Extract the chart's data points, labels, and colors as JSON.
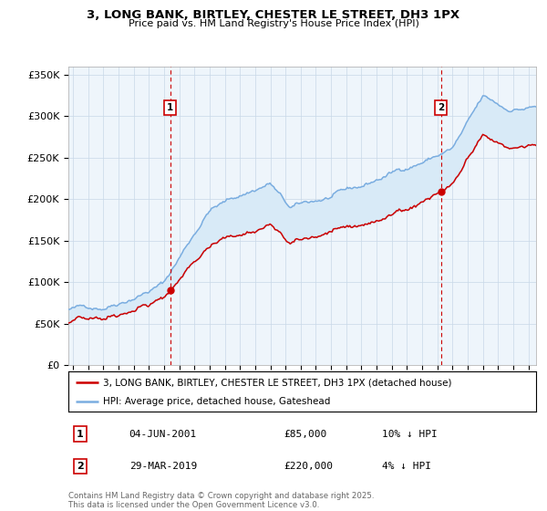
{
  "title": "3, LONG BANK, BIRTLEY, CHESTER LE STREET, DH3 1PX",
  "subtitle": "Price paid vs. HM Land Registry's House Price Index (HPI)",
  "ylabel_ticks": [
    "£0",
    "£50K",
    "£100K",
    "£150K",
    "£200K",
    "£250K",
    "£300K",
    "£350K"
  ],
  "ytick_values": [
    0,
    50000,
    100000,
    150000,
    200000,
    250000,
    300000,
    350000
  ],
  "ylim": [
    0,
    360000
  ],
  "xlim_start": 1994.7,
  "xlim_end": 2025.5,
  "legend_line1": "3, LONG BANK, BIRTLEY, CHESTER LE STREET, DH3 1PX (detached house)",
  "legend_line2": "HPI: Average price, detached house, Gateshead",
  "sale1_label": "1",
  "sale1_date": "04-JUN-2001",
  "sale1_price": "£85,000",
  "sale1_hpi": "10% ↓ HPI",
  "sale1_year": 2001.42,
  "sale1_value": 85000,
  "sale2_label": "2",
  "sale2_date": "29-MAR-2019",
  "sale2_price": "£220,000",
  "sale2_hpi": "4% ↓ HPI",
  "sale2_year": 2019.23,
  "sale2_value": 220000,
  "property_color": "#cc0000",
  "hpi_color": "#7aade0",
  "vline_color": "#cc0000",
  "fill_color": "#d8eaf7",
  "background_color": "#ffffff",
  "plot_bg_color": "#eef5fb",
  "grid_color": "#c8d8e8"
}
